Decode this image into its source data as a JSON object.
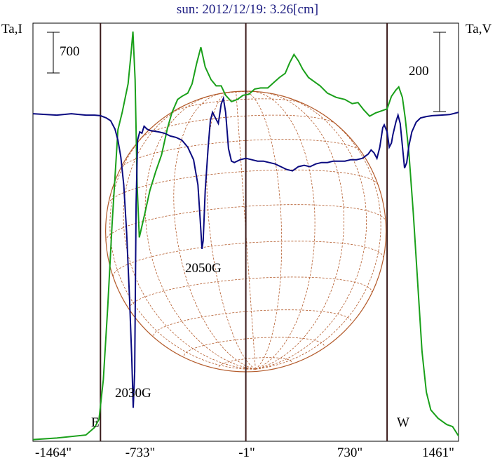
{
  "chart_data": {
    "type": "line",
    "title": "sun: 2012/12/19: 3.26[cm]",
    "ylabel_left": "Ta,I",
    "ylabel_right": "Ta,V",
    "xticks": [
      "-1464\"",
      "-733\"",
      "-1\"",
      "730\"",
      "1461\""
    ],
    "xtick_values": [
      -1464,
      -733,
      -1,
      730,
      1461
    ],
    "xlim": [
      -1464,
      1461
    ],
    "ylim_I": [
      0,
      4000
    ],
    "ylim_V": [
      -1000,
      500
    ],
    "scale_bars": {
      "left": "700",
      "right": "200"
    },
    "limb_labels": {
      "east": "E",
      "west": "W"
    },
    "vertical_lines_x": [
      -1000,
      -1,
      970
    ],
    "annotations": [
      {
        "text": "2030G",
        "x": -733,
        "y_I": 780
      },
      {
        "text": "2050G",
        "x": -290,
        "y_I": 1850
      }
    ],
    "series": [
      {
        "axis": "left",
        "color": "#1aa01a",
        "points": [
          [
            -1464,
            16
          ],
          [
            -1300,
            31
          ],
          [
            -1100,
            60
          ],
          [
            -1040,
            132
          ],
          [
            -1010,
            210
          ],
          [
            -980,
            590
          ],
          [
            -950,
            1290
          ],
          [
            -920,
            2080
          ],
          [
            -880,
            2980
          ],
          [
            -850,
            3150
          ],
          [
            -810,
            3420
          ],
          [
            -790,
            3710
          ],
          [
            -777,
            3920
          ],
          [
            -762,
            3460
          ],
          [
            -748,
            2450
          ],
          [
            -733,
            1950
          ],
          [
            -718,
            2040
          ],
          [
            -695,
            2180
          ],
          [
            -660,
            2400
          ],
          [
            -620,
            2580
          ],
          [
            -580,
            2740
          ],
          [
            -540,
            2990
          ],
          [
            -510,
            3140
          ],
          [
            -470,
            3270
          ],
          [
            -440,
            3300
          ],
          [
            -400,
            3330
          ],
          [
            -370,
            3420
          ],
          [
            -340,
            3610
          ],
          [
            -310,
            3770
          ],
          [
            -280,
            3580
          ],
          [
            -240,
            3460
          ],
          [
            -205,
            3400
          ],
          [
            -170,
            3400
          ],
          [
            -140,
            3310
          ],
          [
            -100,
            3250
          ],
          [
            -60,
            3270
          ],
          [
            -20,
            3310
          ],
          [
            20,
            3320
          ],
          [
            60,
            3370
          ],
          [
            100,
            3380
          ],
          [
            150,
            3380
          ],
          [
            190,
            3430
          ],
          [
            230,
            3480
          ],
          [
            270,
            3520
          ],
          [
            300,
            3620
          ],
          [
            330,
            3700
          ],
          [
            360,
            3640
          ],
          [
            390,
            3560
          ],
          [
            430,
            3480
          ],
          [
            470,
            3440
          ],
          [
            510,
            3400
          ],
          [
            560,
            3330
          ],
          [
            620,
            3290
          ],
          [
            680,
            3270
          ],
          [
            730,
            3230
          ],
          [
            770,
            3240
          ],
          [
            810,
            3170
          ],
          [
            850,
            3110
          ],
          [
            890,
            3140
          ],
          [
            930,
            3160
          ],
          [
            970,
            3180
          ],
          [
            1000,
            3300
          ],
          [
            1030,
            3360
          ],
          [
            1050,
            3390
          ],
          [
            1075,
            3290
          ],
          [
            1095,
            3090
          ],
          [
            1120,
            2760
          ],
          [
            1150,
            2180
          ],
          [
            1180,
            1520
          ],
          [
            1210,
            860
          ],
          [
            1240,
            470
          ],
          [
            1270,
            300
          ],
          [
            1320,
            220
          ],
          [
            1380,
            160
          ],
          [
            1420,
            140
          ],
          [
            1461,
            50
          ]
        ]
      },
      {
        "axis": "right",
        "color": "#0a0a80",
        "points": [
          [
            -1464,
            175
          ],
          [
            -1300,
            170
          ],
          [
            -1200,
            175
          ],
          [
            -1100,
            170
          ],
          [
            -1040,
            170
          ],
          [
            -1000,
            168
          ],
          [
            -960,
            160
          ],
          [
            -930,
            150
          ],
          [
            -900,
            120
          ],
          [
            -880,
            80
          ],
          [
            -860,
            20
          ],
          [
            -840,
            -80
          ],
          [
            -820,
            -250
          ],
          [
            -800,
            -490
          ],
          [
            -785,
            -700
          ],
          [
            -775,
            -880
          ],
          [
            -765,
            -750
          ],
          [
            -755,
            -150
          ],
          [
            -745,
            80
          ],
          [
            -730,
            110
          ],
          [
            -715,
            105
          ],
          [
            -700,
            130
          ],
          [
            -680,
            120
          ],
          [
            -660,
            115
          ],
          [
            -600,
            110
          ],
          [
            -560,
            105
          ],
          [
            -520,
            95
          ],
          [
            -480,
            90
          ],
          [
            -440,
            80
          ],
          [
            -400,
            55
          ],
          [
            -360,
            10
          ],
          [
            -330,
            -80
          ],
          [
            -315,
            -200
          ],
          [
            -302,
            -310
          ],
          [
            -294,
            -280
          ],
          [
            -280,
            -100
          ],
          [
            -260,
            55
          ],
          [
            -245,
            150
          ],
          [
            -230,
            180
          ],
          [
            -210,
            160
          ],
          [
            -190,
            140
          ],
          [
            -170,
            210
          ],
          [
            -155,
            230
          ],
          [
            -140,
            180
          ],
          [
            -120,
            50
          ],
          [
            -100,
            5
          ],
          [
            -80,
            0
          ],
          [
            -40,
            10
          ],
          [
            0,
            15
          ],
          [
            40,
            10
          ],
          [
            80,
            5
          ],
          [
            120,
            5
          ],
          [
            160,
            0
          ],
          [
            200,
            -5
          ],
          [
            240,
            -15
          ],
          [
            280,
            -25
          ],
          [
            320,
            -30
          ],
          [
            360,
            -15
          ],
          [
            400,
            -10
          ],
          [
            440,
            -15
          ],
          [
            480,
            -5
          ],
          [
            520,
            0
          ],
          [
            560,
            0
          ],
          [
            600,
            5
          ],
          [
            640,
            5
          ],
          [
            680,
            5
          ],
          [
            720,
            10
          ],
          [
            760,
            10
          ],
          [
            800,
            15
          ],
          [
            840,
            30
          ],
          [
            860,
            45
          ],
          [
            880,
            35
          ],
          [
            900,
            15
          ],
          [
            920,
            55
          ],
          [
            940,
            125
          ],
          [
            950,
            135
          ],
          [
            970,
            110
          ],
          [
            985,
            55
          ],
          [
            1000,
            70
          ],
          [
            1010,
            100
          ],
          [
            1030,
            145
          ],
          [
            1045,
            170
          ],
          [
            1060,
            140
          ],
          [
            1075,
            60
          ],
          [
            1090,
            -20
          ],
          [
            1105,
            0
          ],
          [
            1120,
            60
          ],
          [
            1140,
            110
          ],
          [
            1170,
            145
          ],
          [
            1200,
            160
          ],
          [
            1240,
            165
          ],
          [
            1280,
            168
          ],
          [
            1340,
            170
          ],
          [
            1400,
            172
          ],
          [
            1461,
            180
          ]
        ]
      }
    ]
  }
}
